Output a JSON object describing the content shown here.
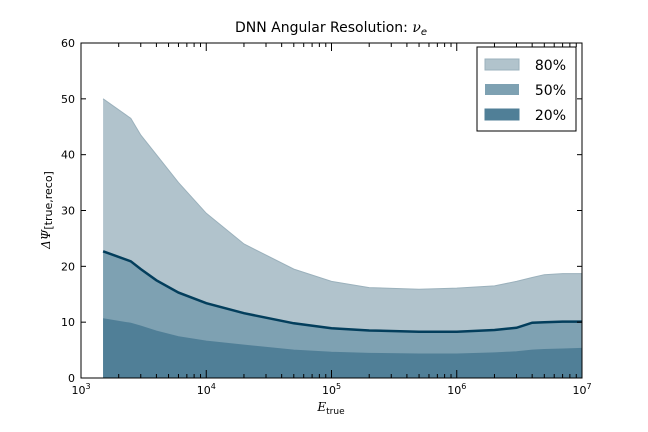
{
  "chart_data": {
    "type": "area",
    "title_main": "DNN Angular Resolution: ",
    "title_symbol": "ν",
    "title_sub": "e",
    "xlabel_main": "E",
    "xlabel_sub": "true",
    "ylabel_symbol": "ΔΨ",
    "ylabel_sub": "[true,reco]",
    "xscale": "log",
    "xlim": [
      1000,
      10000000
    ],
    "ylim": [
      0,
      60
    ],
    "x_ticks": [
      {
        "base": "10",
        "exp": "3",
        "value": 1000
      },
      {
        "base": "10",
        "exp": "4",
        "value": 10000
      },
      {
        "base": "10",
        "exp": "5",
        "value": 100000
      },
      {
        "base": "10",
        "exp": "6",
        "value": 1000000
      },
      {
        "base": "10",
        "exp": "7",
        "value": 10000000
      }
    ],
    "y_ticks": [
      "0",
      "10",
      "20",
      "30",
      "40",
      "50",
      "60"
    ],
    "grid": false,
    "legend_position": "top-right",
    "x": [
      1500,
      2500,
      3000,
      4000,
      6000,
      10000,
      20000,
      50000,
      100000,
      200000,
      500000,
      1000000,
      2000000,
      3000000,
      4000000,
      5000000,
      7000000,
      10000000
    ],
    "series": [
      {
        "name": "80%",
        "color": "#b1c3cc",
        "edge": "#9bb1bc",
        "values": [
          50,
          46.5,
          43.5,
          40,
          35,
          29.5,
          24,
          19.5,
          17.3,
          16.2,
          15.9,
          16.1,
          16.5,
          17.3,
          18.0,
          18.5,
          18.7,
          18.7
        ]
      },
      {
        "name": "50%",
        "color": "#7ea1b2",
        "edge": "#033e5c",
        "values": [
          22.7,
          20.9,
          19.5,
          17.5,
          15.3,
          13.4,
          11.6,
          9.8,
          8.9,
          8.5,
          8.3,
          8.3,
          8.6,
          9.0,
          9.9,
          10.0,
          10.1,
          10.1
        ]
      },
      {
        "name": "20%",
        "color": "#507f97",
        "edge": "#507f97",
        "values": [
          10.6,
          9.8,
          9.3,
          8.4,
          7.4,
          6.6,
          5.9,
          5.0,
          4.6,
          4.4,
          4.3,
          4.3,
          4.5,
          4.7,
          5.0,
          5.1,
          5.2,
          5.3
        ]
      }
    ]
  }
}
